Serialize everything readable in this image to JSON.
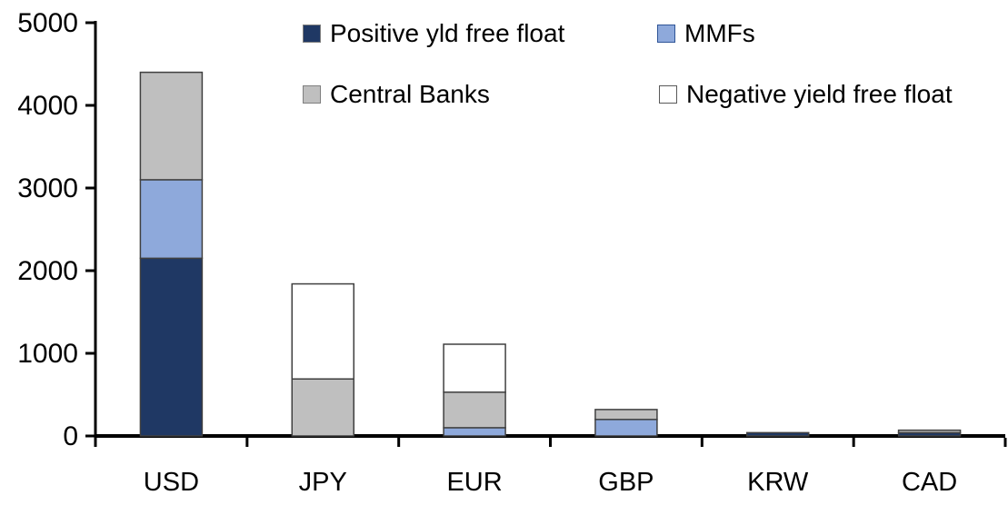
{
  "chart_data": {
    "type": "bar",
    "stacked": true,
    "title": "",
    "xlabel": "",
    "ylabel": "",
    "categories": [
      "USD",
      "JPY",
      "EUR",
      "GBP",
      "KRW",
      "CAD"
    ],
    "series": [
      {
        "name": "Positive yld free float",
        "color": "#1F3864",
        "legend_border": "#7F7F7F",
        "values": [
          2150,
          0,
          0,
          0,
          40,
          40
        ]
      },
      {
        "name": "MMFs",
        "color": "#8EA9DB",
        "legend_border": "#2F5597",
        "values": [
          950,
          0,
          100,
          200,
          0,
          0
        ]
      },
      {
        "name": "Central Banks",
        "color": "#BFBFBF",
        "legend_border": "#7F7F7F",
        "values": [
          1300,
          690,
          430,
          120,
          0,
          30
        ]
      },
      {
        "name": "Negative yield free float",
        "color": "#FFFFFF",
        "legend_border": "#595959",
        "values": [
          0,
          1150,
          580,
          0,
          0,
          0
        ]
      }
    ],
    "ylim": [
      0,
      5000
    ],
    "yticks": [
      0,
      1000,
      2000,
      3000,
      4000,
      5000
    ],
    "grid": false,
    "legend_position": "top-inside-two-columns",
    "axis_color": "#000000",
    "bar_border_color": "#404040",
    "background": "#FFFFFF"
  }
}
